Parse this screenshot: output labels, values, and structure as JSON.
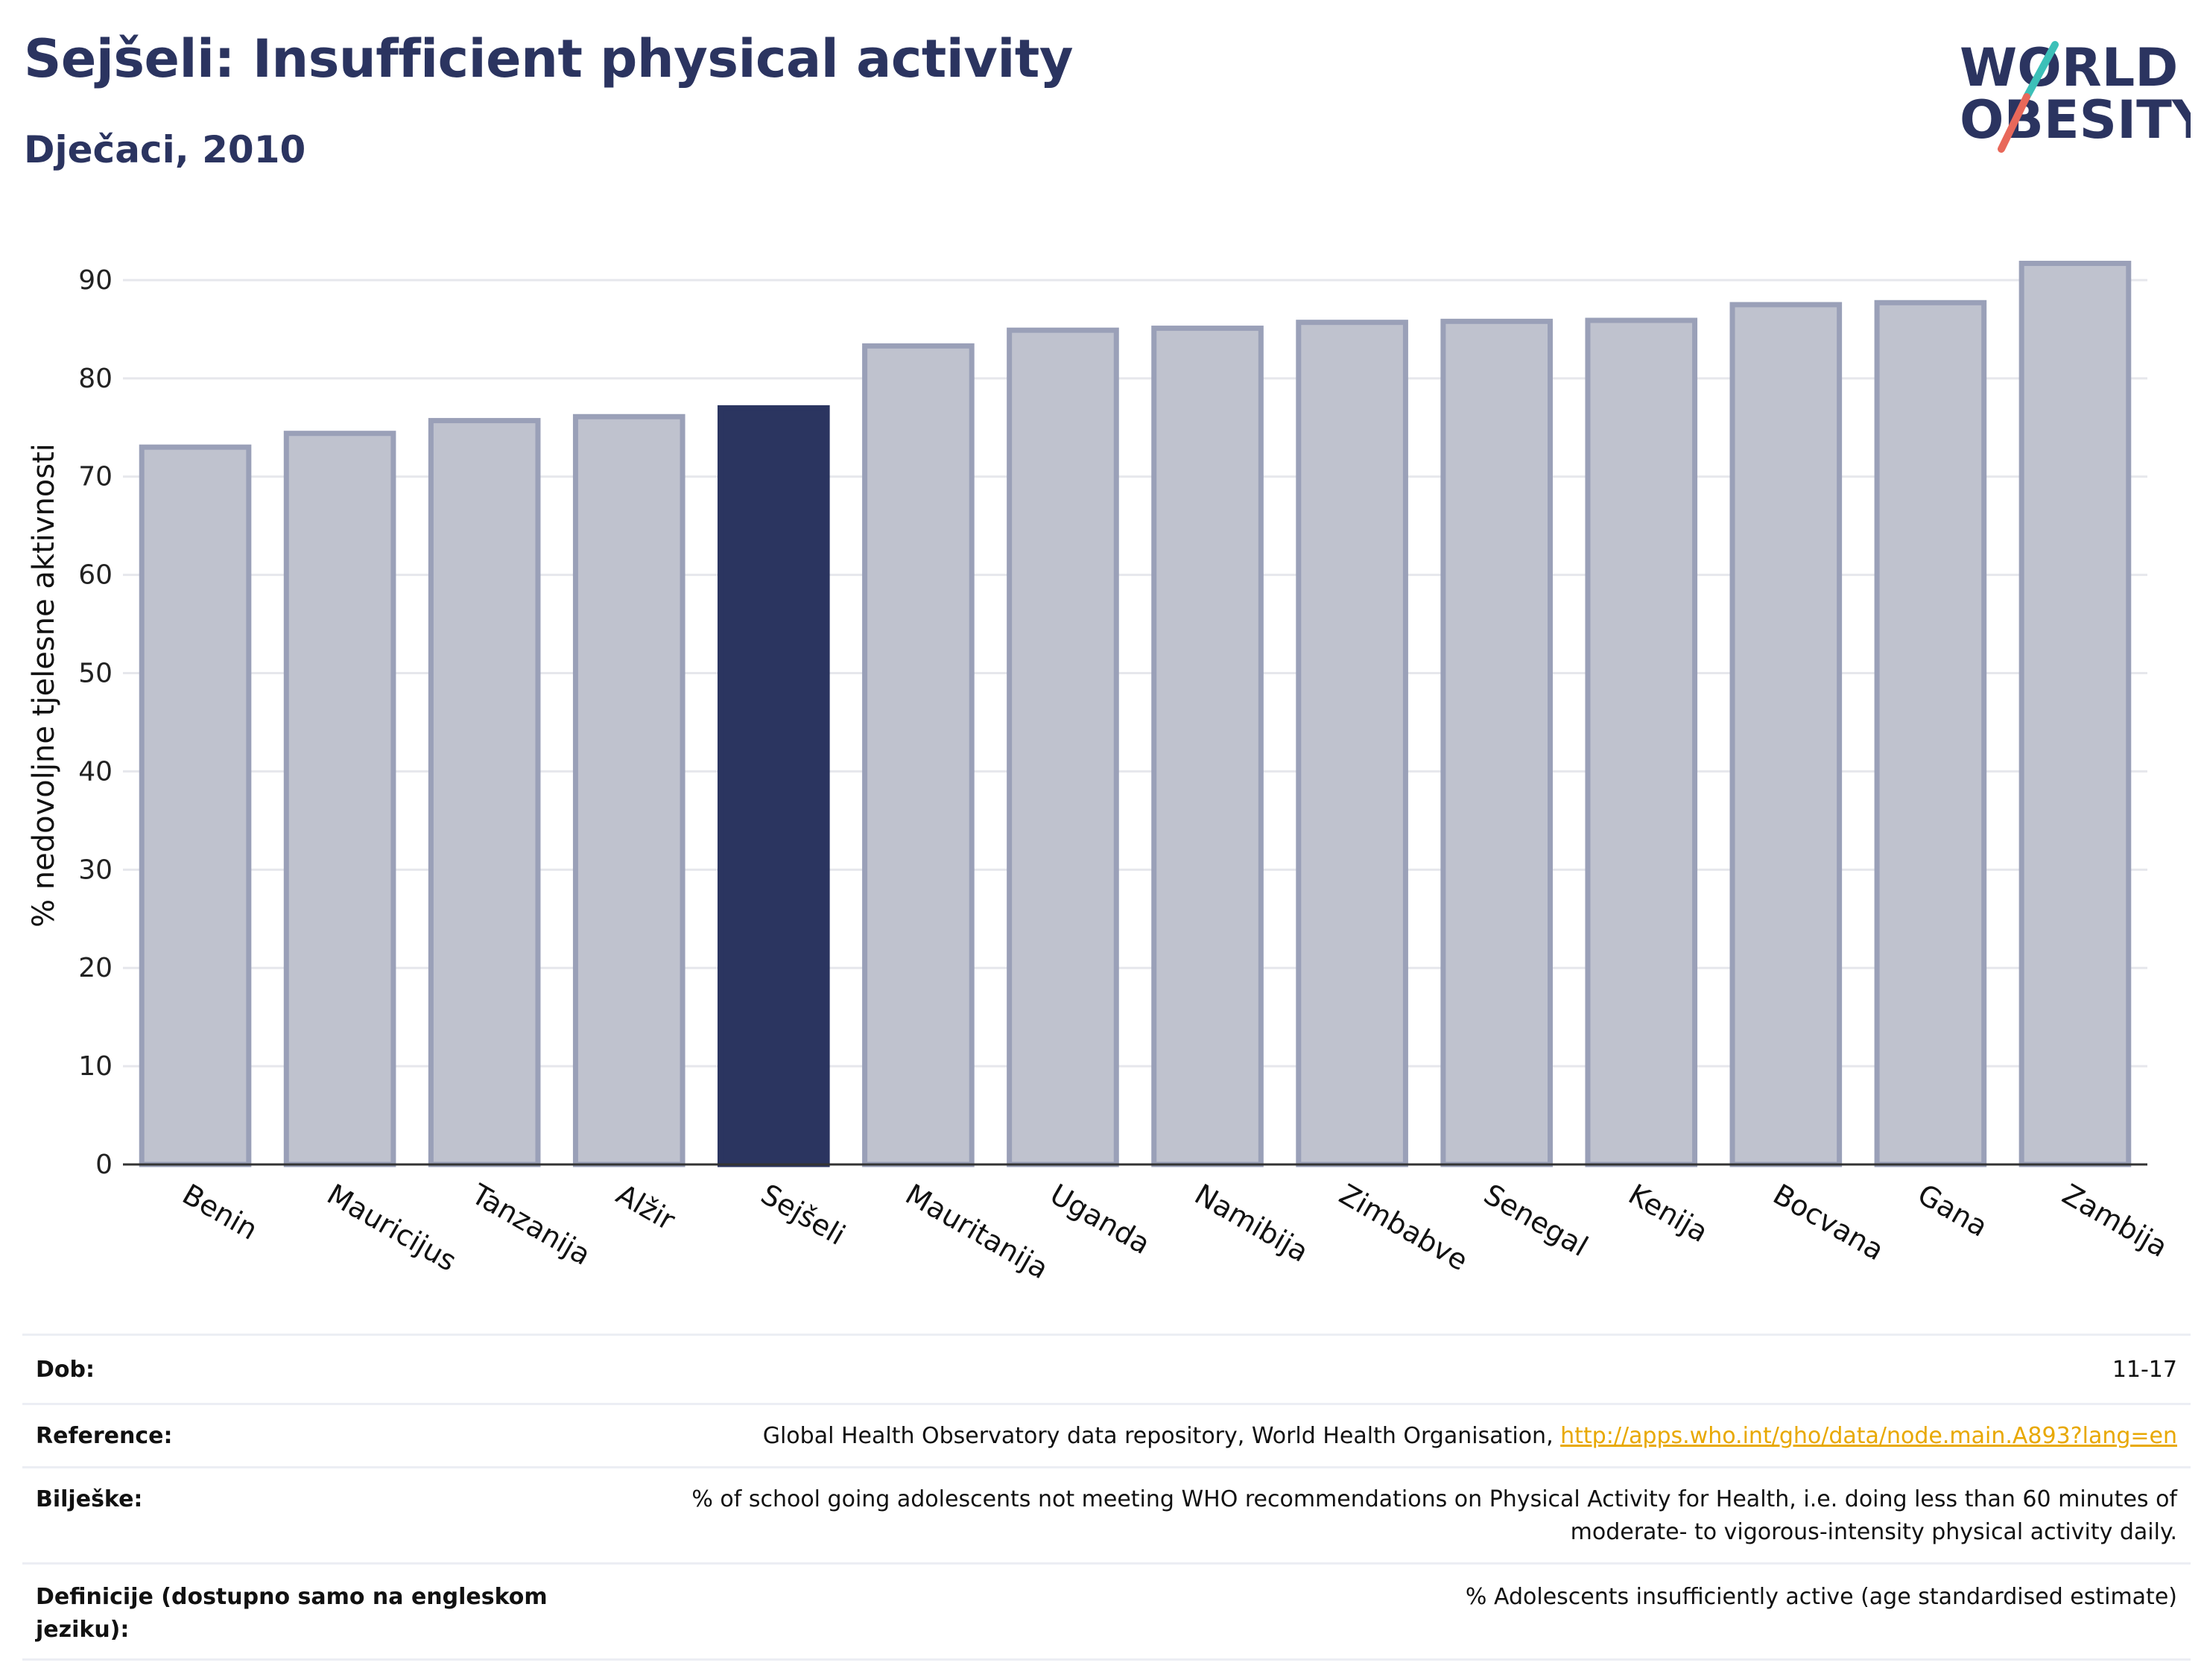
{
  "header": {
    "title": "Sejšeli: Insufficient physical activity",
    "subtitle": "Dječaci, 2010"
  },
  "logo": {
    "line1": "WORLD",
    "line2": "OBESITY",
    "accent_teal": "#3cc0b8",
    "accent_red": "#e8685a"
  },
  "colors": {
    "bar": "#bfc2ce",
    "bar_edge": "#9aa0b8",
    "highlight": "#2b3560",
    "grid": "#e6e7ec"
  },
  "chart_data": {
    "type": "bar",
    "categories": [
      "Benin",
      "Mauricijus",
      "Tanzanija",
      "Alžir",
      "Sejšeli",
      "Mauritanija",
      "Uganda",
      "Namibija",
      "Zimbabve",
      "Senegal",
      "Kenija",
      "Bocvana",
      "Gana",
      "Zambija"
    ],
    "values": [
      73.0,
      74.4,
      75.7,
      76.1,
      77.0,
      83.3,
      84.9,
      85.1,
      85.7,
      85.8,
      85.9,
      87.5,
      87.7,
      91.7
    ],
    "highlight": "Sejšeli",
    "title": "Sejšeli: Insufficient physical activity",
    "xlabel": "",
    "ylabel": "% nedovoljne tjelesne aktivnosti",
    "ylim": [
      0,
      95
    ],
    "yticks": [
      0,
      10,
      20,
      30,
      40,
      50,
      60,
      70,
      80,
      90
    ],
    "grid": true
  },
  "info": {
    "age_label": "Dob:",
    "age_value": "11-17",
    "ref_label": "Reference:",
    "ref_text": "Global Health Observatory data repository, World Health Organisation, ",
    "ref_link": "http://apps.who.int/gho/data/node.main.A893?lang=en",
    "notes_label": "Bilješke:",
    "notes_line1": "% of school going adolescents not meeting WHO recommendations on Physical Activity for Health, i.e. doing less than 60 minutes of",
    "notes_line2": "moderate- to vigorous-intensity physical activity daily.",
    "def_label_line1": "Definicije (dostupno samo na engleskom",
    "def_label_line2": "jeziku):",
    "def_value": "% Adolescents insufficiently active (age standardised estimate)"
  }
}
